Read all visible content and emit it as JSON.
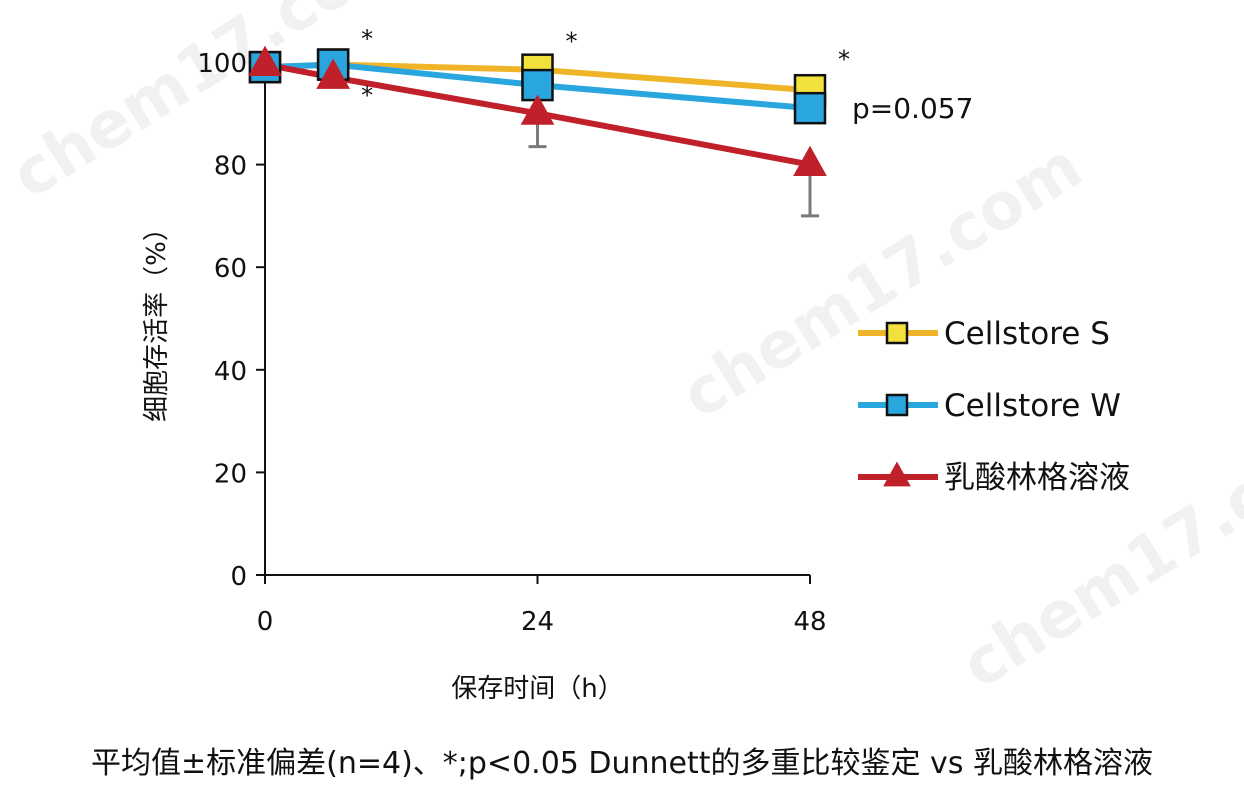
{
  "watermark": "chem17.com",
  "caption": "平均值±标准偏差(n=4)、*;p<0.05 Dunnett的多重比较鉴定 vs 乳酸林格溶液",
  "chart_data": {
    "type": "line",
    "title": "",
    "xlabel": "保存时间（h）",
    "ylabel": "细胞存活率（%）",
    "x_ticks": [
      0,
      24,
      48
    ],
    "y_ticks": [
      0,
      20,
      40,
      60,
      80,
      100
    ],
    "xlim": [
      0,
      48
    ],
    "ylim": [
      0,
      100
    ],
    "grid": false,
    "legend_position": "right",
    "series": [
      {
        "name": "Cellstore S",
        "color": "#f0b428",
        "marker": "square",
        "marker_color": "#f2e13c",
        "x": [
          0,
          6,
          24,
          48
        ],
        "y": [
          99,
          99.5,
          98.5,
          94.5
        ],
        "error": [
          1,
          1,
          1,
          1
        ]
      },
      {
        "name": "Cellstore W",
        "color": "#2aa6df",
        "marker": "square",
        "marker_color": "#2aa6df",
        "x": [
          0,
          6,
          24,
          48
        ],
        "y": [
          99,
          99.5,
          95.5,
          91
        ],
        "error": [
          1,
          1,
          1.5,
          2.5
        ]
      },
      {
        "name": "乳酸林格溶液",
        "color": "#c0202a",
        "marker": "triangle",
        "marker_color": "#c0202a",
        "x": [
          0,
          6,
          24,
          48
        ],
        "y": [
          99.5,
          97,
          90,
          80
        ],
        "error": [
          0.5,
          1,
          6.5,
          10
        ]
      }
    ],
    "annotations": [
      {
        "text": "*",
        "x": 6,
        "y": 104.5
      },
      {
        "text": "*",
        "x": 6,
        "y": 93.5
      },
      {
        "text": "*",
        "x": 24,
        "y": 104
      },
      {
        "text": "*",
        "x": 48,
        "y": 100.5
      },
      {
        "text": "p=0.057",
        "x": 48,
        "y": 91
      }
    ]
  }
}
